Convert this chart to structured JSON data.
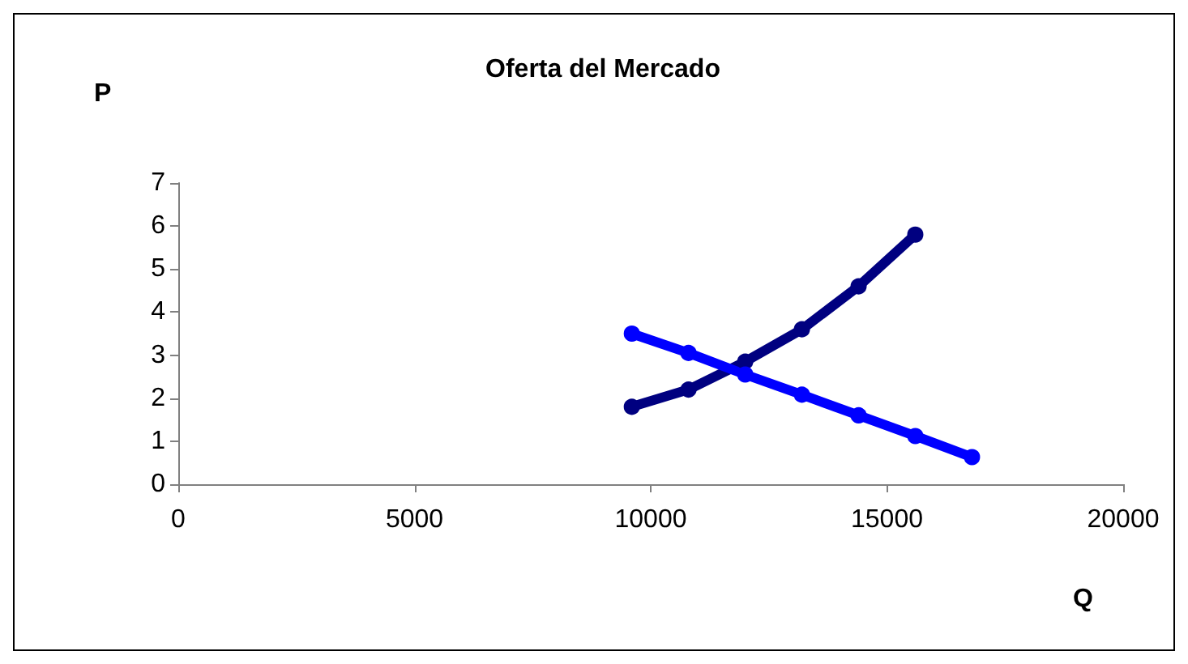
{
  "chart_data": {
    "type": "line",
    "title": "Oferta del Mercado",
    "xlabel": "Q",
    "ylabel": "P",
    "xlim": [
      0,
      20000
    ],
    "xticks": [
      0,
      5000,
      10000,
      15000,
      20000
    ],
    "ylim": [
      0,
      7
    ],
    "yticks": [
      0,
      1,
      2,
      3,
      4,
      5,
      6,
      7
    ],
    "grid": false,
    "marker": "circle",
    "line_style": "solid",
    "series": [
      {
        "color": "#000080",
        "x": [
          9600,
          10800,
          12000,
          13200,
          14400,
          15600
        ],
        "values": [
          1.8,
          2.2,
          2.85,
          3.6,
          4.6,
          5.8
        ]
      },
      {
        "color": "#0000ff",
        "x": [
          9600,
          10800,
          12000,
          13200,
          14400,
          15600,
          16800
        ],
        "values": [
          3.5,
          3.05,
          2.55,
          2.08,
          1.6,
          1.12,
          0.63
        ]
      }
    ]
  }
}
